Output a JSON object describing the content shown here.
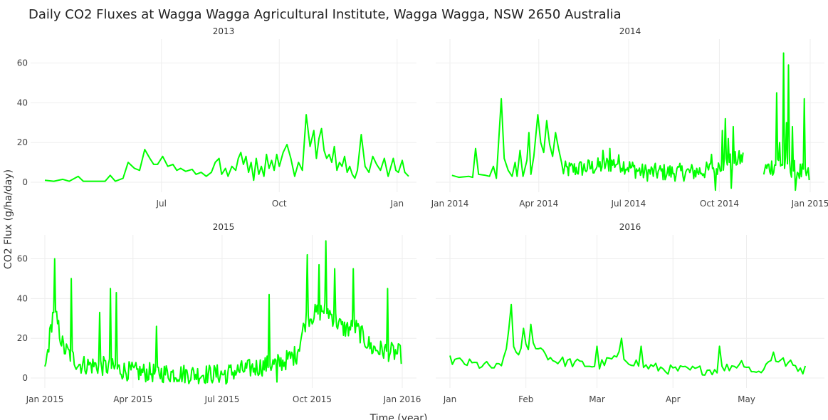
{
  "chart_data": {
    "type": "line",
    "title": "Daily CO2 Fluxes at Wagga Wagga Agricultural Institute, Wagga Wagga, NSW 2650 Australia",
    "xlabel": "Time (year)",
    "ylabel": "CO2 Flux (g/ha/day)",
    "ylim": [
      -5,
      72
    ],
    "y_ticks": [
      0,
      20,
      40,
      60
    ],
    "grid": true,
    "line_color": "#00FF00",
    "panels": [
      {
        "facet_label": "2013",
        "x_ticks": [
          {
            "x": "2013-07-01",
            "label": "Jul"
          },
          {
            "x": "2013-10-01",
            "label": "Oct"
          },
          {
            "x": "2014-01-01",
            "label": "Jan"
          }
        ],
        "xlim": [
          "2013-04-01",
          "2014-01-05"
        ],
        "points": [
          [
            "2013-04-01",
            1
          ],
          [
            "2013-04-08",
            0.5
          ],
          [
            "2013-04-15",
            1.5
          ],
          [
            "2013-04-20",
            0.5
          ],
          [
            "2013-04-27",
            3
          ],
          [
            "2013-05-01",
            0.5
          ],
          [
            "2013-05-10",
            0.5
          ],
          [
            "2013-05-18",
            0.5
          ],
          [
            "2013-05-22",
            3.5
          ],
          [
            "2013-05-26",
            0.5
          ],
          [
            "2013-06-01",
            2
          ],
          [
            "2013-06-05",
            10
          ],
          [
            "2013-06-10",
            7
          ],
          [
            "2013-06-14",
            6
          ],
          [
            "2013-06-18",
            16.5
          ],
          [
            "2013-06-22",
            12
          ],
          [
            "2013-06-25",
            9
          ],
          [
            "2013-06-28",
            9
          ],
          [
            "2013-07-02",
            13
          ],
          [
            "2013-07-06",
            8
          ],
          [
            "2013-07-10",
            9
          ],
          [
            "2013-07-13",
            6
          ],
          [
            "2013-07-16",
            7
          ],
          [
            "2013-07-20",
            5.5
          ],
          [
            "2013-07-25",
            6.5
          ],
          [
            "2013-07-28",
            4
          ],
          [
            "2013-08-01",
            5
          ],
          [
            "2013-08-05",
            3
          ],
          [
            "2013-08-09",
            5
          ],
          [
            "2013-08-12",
            10
          ],
          [
            "2013-08-15",
            12
          ],
          [
            "2013-08-17",
            4
          ],
          [
            "2013-08-20",
            7
          ],
          [
            "2013-08-22",
            3
          ],
          [
            "2013-08-25",
            8
          ],
          [
            "2013-08-28",
            6
          ],
          [
            "2013-08-30",
            12
          ],
          [
            "2013-09-01",
            15
          ],
          [
            "2013-09-03",
            9
          ],
          [
            "2013-09-05",
            13
          ],
          [
            "2013-09-07",
            5
          ],
          [
            "2013-09-09",
            10
          ],
          [
            "2013-09-11",
            1
          ],
          [
            "2013-09-13",
            12
          ],
          [
            "2013-09-15",
            4
          ],
          [
            "2013-09-17",
            8
          ],
          [
            "2013-09-19",
            3
          ],
          [
            "2013-09-21",
            14
          ],
          [
            "2013-09-23",
            7
          ],
          [
            "2013-09-25",
            11
          ],
          [
            "2013-09-27",
            6
          ],
          [
            "2013-09-29",
            14
          ],
          [
            "2013-10-01",
            8
          ],
          [
            "2013-10-04",
            15
          ],
          [
            "2013-10-07",
            19
          ],
          [
            "2013-10-10",
            12
          ],
          [
            "2013-10-13",
            3
          ],
          [
            "2013-10-16",
            10
          ],
          [
            "2013-10-19",
            6
          ],
          [
            "2013-10-22",
            34
          ],
          [
            "2013-10-25",
            18
          ],
          [
            "2013-10-28",
            26
          ],
          [
            "2013-10-30",
            12
          ],
          [
            "2013-11-01",
            22
          ],
          [
            "2013-11-03",
            27
          ],
          [
            "2013-11-05",
            16
          ],
          [
            "2013-11-07",
            12
          ],
          [
            "2013-11-09",
            14
          ],
          [
            "2013-11-11",
            10
          ],
          [
            "2013-11-13",
            18
          ],
          [
            "2013-11-15",
            6
          ],
          [
            "2013-11-17",
            10
          ],
          [
            "2013-11-19",
            8
          ],
          [
            "2013-11-21",
            13
          ],
          [
            "2013-11-23",
            5
          ],
          [
            "2013-11-25",
            8
          ],
          [
            "2013-11-27",
            4
          ],
          [
            "2013-11-29",
            2
          ],
          [
            "2013-12-01",
            6
          ],
          [
            "2013-12-04",
            24
          ],
          [
            "2013-12-07",
            8
          ],
          [
            "2013-12-10",
            5
          ],
          [
            "2013-12-13",
            13
          ],
          [
            "2013-12-16",
            9
          ],
          [
            "2013-12-19",
            6
          ],
          [
            "2013-12-22",
            12
          ],
          [
            "2013-12-25",
            3
          ],
          [
            "2013-12-29",
            12
          ],
          [
            "2013-12-31",
            6
          ],
          [
            "2014-01-02",
            5
          ],
          [
            "2014-01-05",
            11
          ],
          [
            "2014-01-07",
            5
          ],
          [
            "2014-01-10",
            3
          ]
        ]
      },
      {
        "facet_label": "2014",
        "x_ticks": [
          {
            "x": "2014-01-01",
            "label": "Jan 2014"
          },
          {
            "x": "2014-04-01",
            "label": "Apr 2014"
          },
          {
            "x": "2014-07-01",
            "label": "Jul 2014"
          },
          {
            "x": "2014-10-01",
            "label": "Oct 2014"
          },
          {
            "x": "2015-01-01",
            "label": "Jan 2015"
          }
        ],
        "xlim": [
          "2014-01-01",
          "2015-01-01"
        ],
        "points": []
      },
      {
        "facet_label": "2015",
        "x_ticks": [
          {
            "x": "2015-01-01",
            "label": "Jan 2015"
          },
          {
            "x": "2015-04-01",
            "label": "Apr 2015"
          },
          {
            "x": "2015-07-01",
            "label": "Jul 2015"
          },
          {
            "x": "2015-10-01",
            "label": "Oct 2015"
          },
          {
            "x": "2016-01-01",
            "label": "Jan 2016"
          }
        ],
        "xlim": [
          "2015-01-01",
          "2016-01-01"
        ],
        "points": []
      },
      {
        "facet_label": "2016",
        "x_ticks": [
          {
            "x": "2016-01-01",
            "label": "Jan"
          },
          {
            "x": "2016-02-01",
            "label": "Feb"
          },
          {
            "x": "2016-03-01",
            "label": "Mar"
          },
          {
            "x": "2016-04-01",
            "label": "Apr"
          },
          {
            "x": "2016-05-01",
            "label": "May"
          }
        ],
        "xlim": [
          "2016-01-01",
          "2016-05-27"
        ],
        "points": []
      }
    ]
  }
}
